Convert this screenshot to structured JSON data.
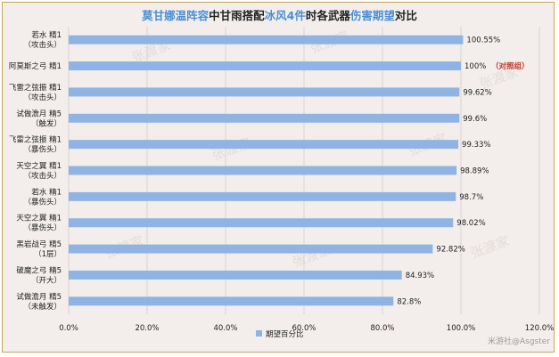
{
  "title_parts": [
    {
      "text": "莫甘娜温阵容",
      "hl": true
    },
    {
      "text": "中甘雨搭配",
      "hl": false
    },
    {
      "text": "冰风4件",
      "hl": true
    },
    {
      "text": "时各武器",
      "hl": false
    },
    {
      "text": "伤害期望",
      "hl": true
    },
    {
      "text": "对比",
      "hl": false
    }
  ],
  "colors": {
    "bar": "#8fb4e3",
    "accent_text": "#4a8fd4",
    "note": "#c0392b",
    "grid": "#d9d2cf"
  },
  "chart_data": {
    "type": "bar",
    "orientation": "horizontal",
    "categories": [
      [
        "若水 精1",
        "（攻击头）"
      ],
      [
        "阿莫斯之弓 精1"
      ],
      [
        "飞雷之弦振 精1",
        "（攻击头）"
      ],
      [
        "试做澹月 精5",
        "（触发）"
      ],
      [
        "飞雷之弦振 精1",
        "（暴伤头）"
      ],
      [
        "天空之翼 精1",
        "（攻击头）"
      ],
      [
        "若水 精1",
        "（暴伤头）"
      ],
      [
        "天空之翼 精1",
        "（暴伤头）"
      ],
      [
        "黑岩战弓 精5",
        "（1层）"
      ],
      [
        "破魔之弓 精5",
        "（开大）"
      ],
      [
        "试做澹月 精5",
        "（未触发）"
      ]
    ],
    "series": [
      {
        "name": "期望百分比",
        "values": [
          100.55,
          100,
          99.62,
          99.6,
          99.33,
          98.89,
          98.7,
          98.02,
          92.82,
          84.93,
          82.8
        ]
      }
    ],
    "data_labels": [
      "100.55%",
      "100%",
      "99.62%",
      "99.6%",
      "99.33%",
      "98.89%",
      "98.7%",
      "98.02%",
      "92.82%",
      "84.93%",
      "82.8%"
    ],
    "annotation": {
      "index": 1,
      "text": "（对照组）"
    },
    "xlim": [
      0,
      120
    ],
    "xticks": [
      0,
      20,
      40,
      60,
      80,
      100,
      120
    ],
    "xtick_labels": [
      "0.0%",
      "20.0%",
      "40.0%",
      "60.0%",
      "80.0%",
      "100.0%",
      "120.0%"
    ],
    "grid": true,
    "legend_position": "bottom-center"
  },
  "watermark": "张渡家",
  "credit": "米游社@Asgster"
}
